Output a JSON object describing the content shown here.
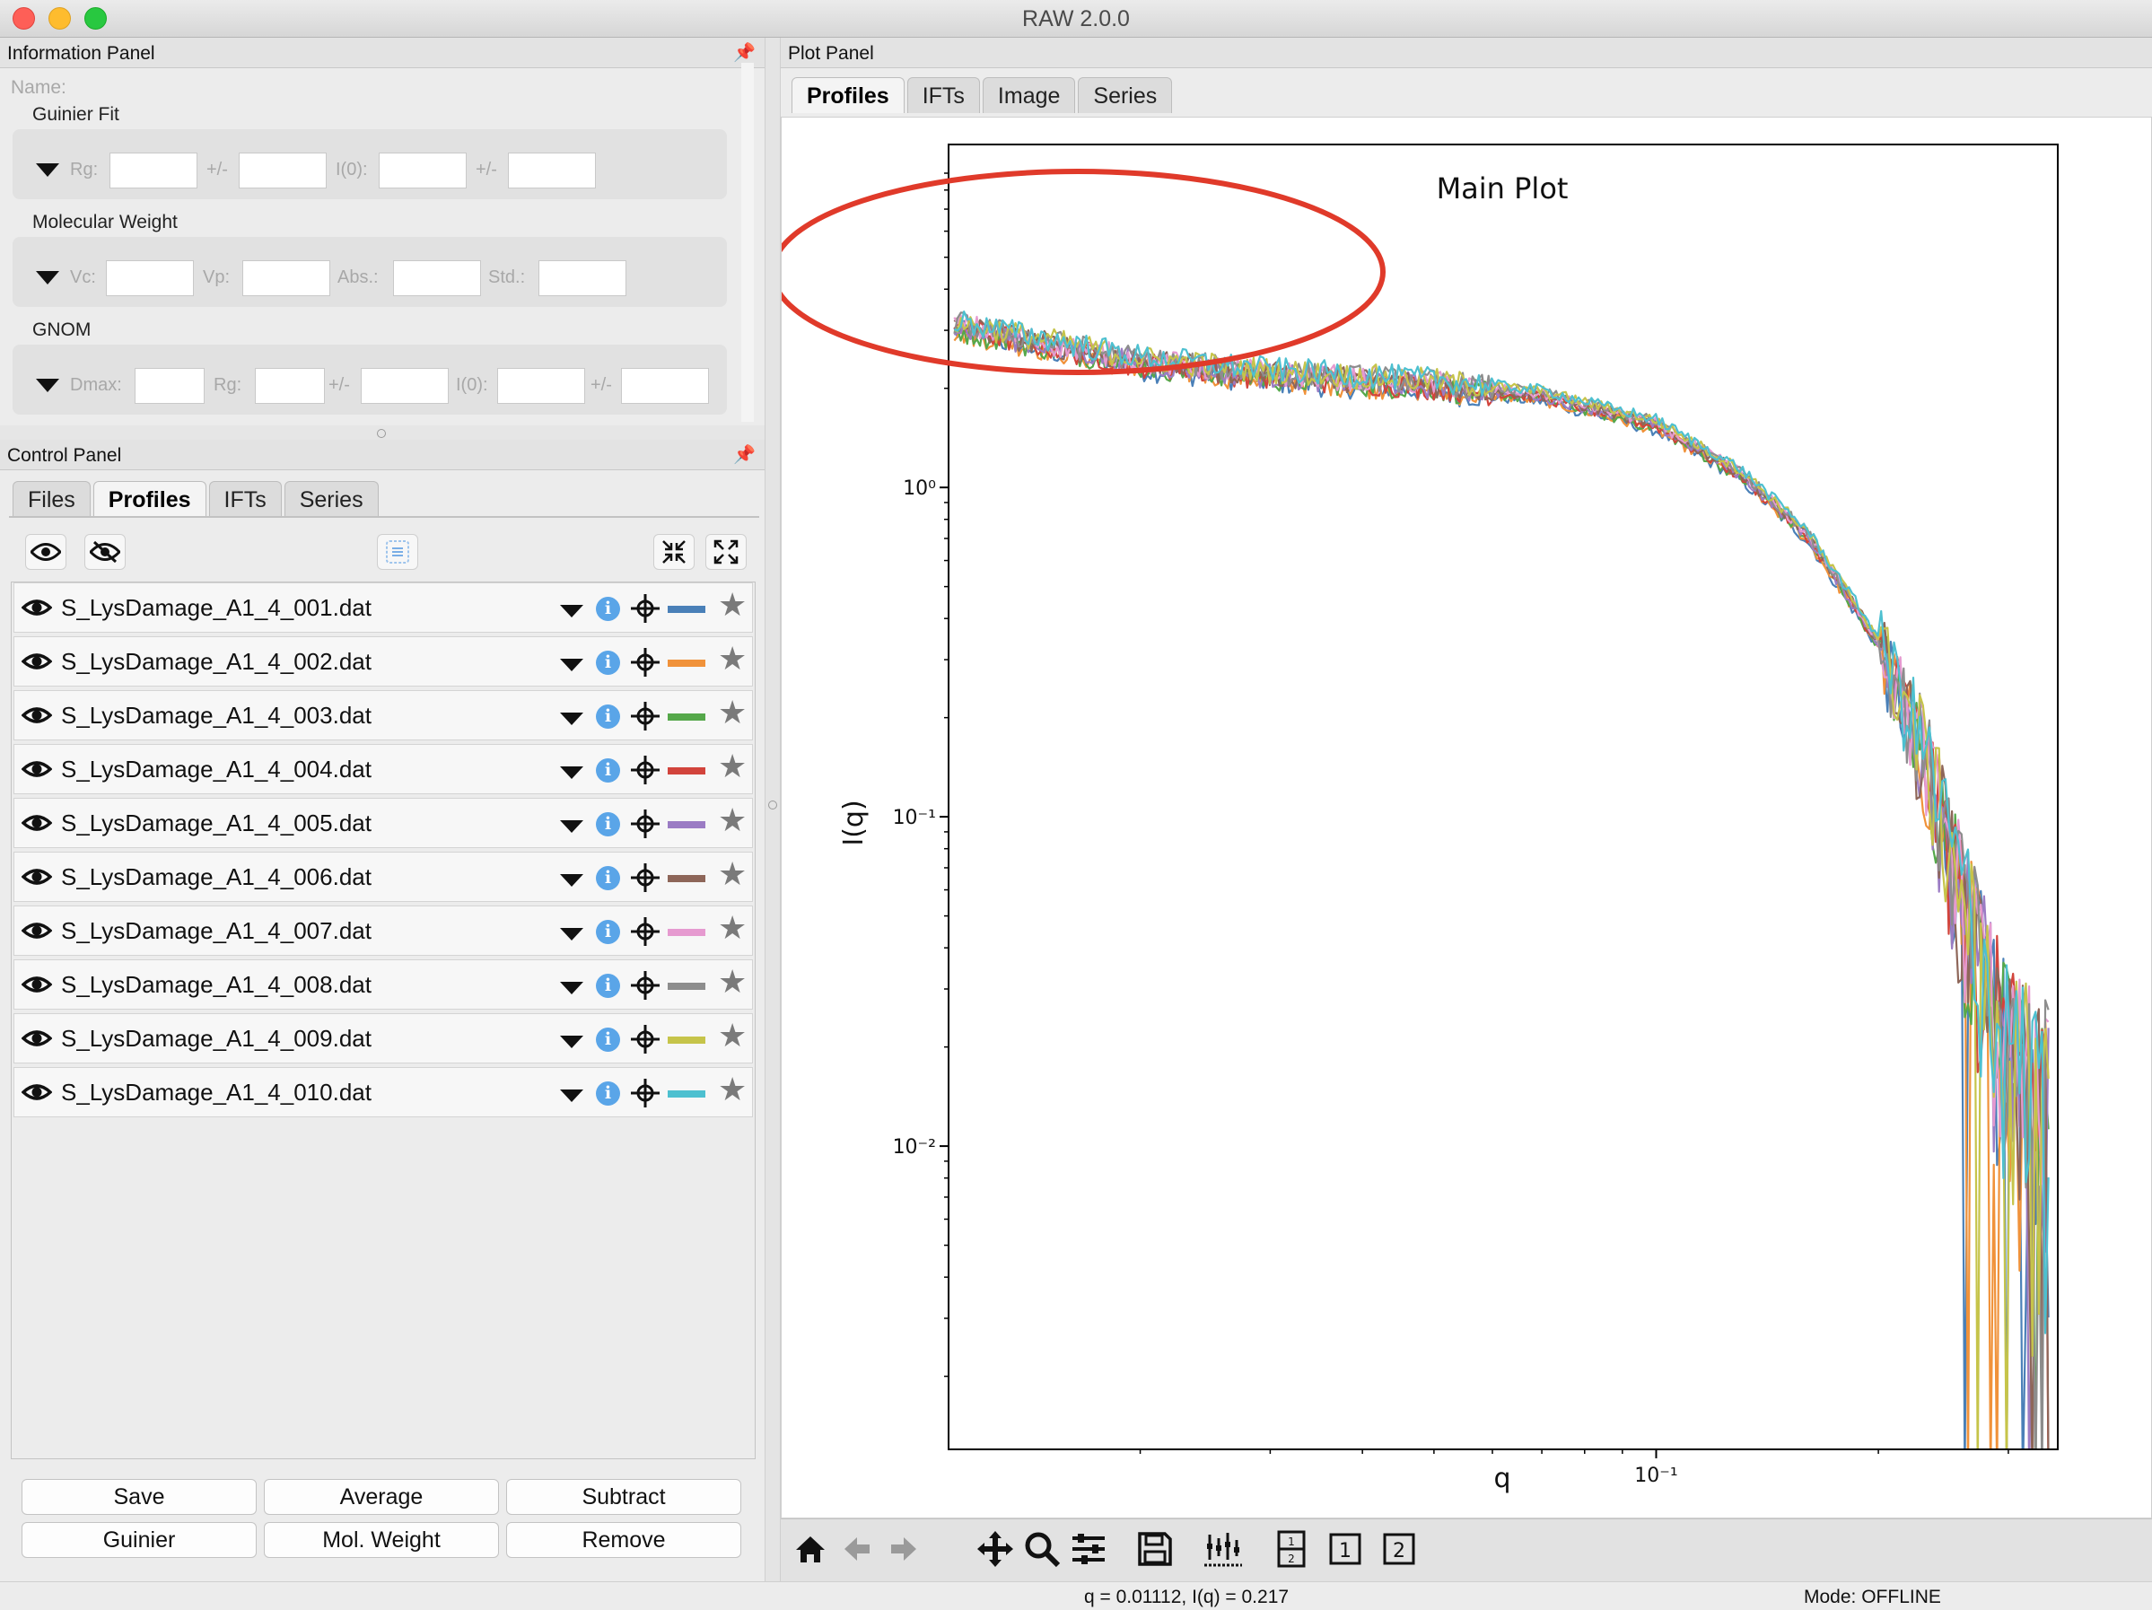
{
  "window": {
    "title": "RAW 2.0.0"
  },
  "info_panel": {
    "title": "Information Panel",
    "name_label": "Name:",
    "guinier": {
      "heading": "Guinier Fit",
      "rg": "Rg:",
      "pm1": "+/-",
      "i0": "I(0):",
      "pm2": "+/-"
    },
    "mw": {
      "heading": "Molecular Weight",
      "vc": "Vc:",
      "vp": "Vp:",
      "abs": "Abs.:",
      "std": "Std.:"
    },
    "gnom": {
      "heading": "GNOM",
      "dmax": "Dmax:",
      "rg": "Rg:",
      "pm1": "+/-",
      "i0": "I(0):",
      "pm2": "+/-"
    }
  },
  "control_panel": {
    "title": "Control Panel",
    "tabs": [
      "Files",
      "Profiles",
      "IFTs",
      "Series"
    ],
    "active_tab": "Profiles",
    "profiles": [
      {
        "name": "S_LysDamage_A1_4_001.dat",
        "color": "#4a80b8"
      },
      {
        "name": "S_LysDamage_A1_4_002.dat",
        "color": "#f0923a"
      },
      {
        "name": "S_LysDamage_A1_4_003.dat",
        "color": "#55a84a"
      },
      {
        "name": "S_LysDamage_A1_4_004.dat",
        "color": "#d2443c"
      },
      {
        "name": "S_LysDamage_A1_4_005.dat",
        "color": "#9b7cc4"
      },
      {
        "name": "S_LysDamage_A1_4_006.dat",
        "color": "#8e6659"
      },
      {
        "name": "S_LysDamage_A1_4_007.dat",
        "color": "#e69ad0"
      },
      {
        "name": "S_LysDamage_A1_4_008.dat",
        "color": "#8d8d8d"
      },
      {
        "name": "S_LysDamage_A1_4_009.dat",
        "color": "#c6c44a"
      },
      {
        "name": "S_LysDamage_A1_4_010.dat",
        "color": "#4dc0d0"
      }
    ],
    "buttons": {
      "save": "Save",
      "average": "Average",
      "subtract": "Subtract",
      "guinier": "Guinier",
      "mol_weight": "Mol. Weight",
      "remove": "Remove"
    }
  },
  "plot_panel": {
    "title": "Plot Panel",
    "tabs": [
      "Profiles",
      "IFTs",
      "Image",
      "Series"
    ],
    "active_tab": "Profiles"
  },
  "chart_data": {
    "type": "line",
    "title": "Main Plot",
    "xlabel": "q",
    "ylabel": "I(q)",
    "xscale": "log",
    "yscale": "log",
    "xlim": [
      0.011,
      0.35
    ],
    "ylim": [
      0.0012,
      11
    ],
    "x_tick_labels": [
      "10⁻¹"
    ],
    "y_tick_labels": [
      "10⁰",
      "10⁻¹",
      "10⁻²"
    ],
    "profile_shape": {
      "q": [
        0.0112,
        0.02,
        0.03,
        0.05,
        0.07,
        0.1,
        0.13,
        0.16,
        0.2,
        0.23,
        0.26,
        0.3,
        0.34
      ],
      "I": [
        3.1,
        2.4,
        2.2,
        2.05,
        1.9,
        1.55,
        1.1,
        0.72,
        0.34,
        0.16,
        0.06,
        0.02,
        0.014
      ]
    },
    "annotation": "red ellipse around low-q region",
    "annotation_color": "#e03a2a"
  },
  "status": {
    "coords": "q = 0.01112, I(q) = 0.217",
    "mode": "Mode: OFFLINE"
  }
}
